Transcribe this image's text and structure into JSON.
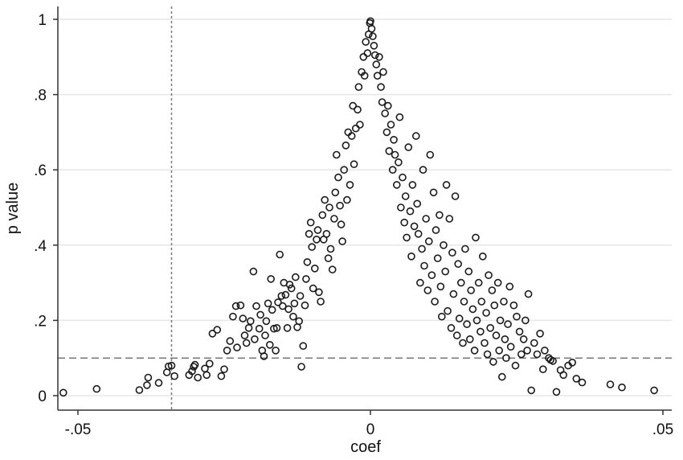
{
  "chart_data": {
    "type": "scatter",
    "xlabel": "coef",
    "ylabel": "p value",
    "xlim": [
      -0.052,
      0.052
    ],
    "ylim": [
      0,
      1
    ],
    "xticks": [
      -0.05,
      0,
      0.05
    ],
    "xtick_labels": [
      "-.05",
      "0",
      ".05"
    ],
    "yticks": [
      0,
      0.2,
      0.4,
      0.6,
      0.8,
      1
    ],
    "ytick_labels": [
      "0",
      ".2",
      ".4",
      ".6",
      ".8",
      "1"
    ],
    "grid": "horizontal",
    "legend": "none",
    "reference_lines": [
      {
        "orientation": "vertical",
        "value": -0.034,
        "style": "dotted"
      },
      {
        "orientation": "horizontal",
        "value": 0.1,
        "style": "dashed"
      }
    ],
    "colors": {
      "marker": "#1a1a1a",
      "grid": "#e6e6e6",
      "axis": "#333333",
      "refline": "#777777"
    },
    "points": [
      [
        -0.0525,
        0.008
      ],
      [
        -0.0468,
        0.018
      ],
      [
        -0.0395,
        0.015
      ],
      [
        -0.0382,
        0.028
      ],
      [
        -0.038,
        0.048
      ],
      [
        -0.0362,
        0.034
      ],
      [
        -0.0348,
        0.062
      ],
      [
        -0.0345,
        0.078
      ],
      [
        -0.034,
        0.08
      ],
      [
        -0.0335,
        0.052
      ],
      [
        -0.031,
        0.055
      ],
      [
        -0.0295,
        0.048
      ],
      [
        -0.0305,
        0.065
      ],
      [
        -0.0302,
        0.077
      ],
      [
        -0.03,
        0.082
      ],
      [
        -0.0283,
        0.072
      ],
      [
        -0.028,
        0.055
      ],
      [
        -0.0275,
        0.085
      ],
      [
        -0.0255,
        0.052
      ],
      [
        -0.027,
        0.165
      ],
      [
        -0.0262,
        0.175
      ],
      [
        -0.025,
        0.07
      ],
      [
        -0.0245,
        0.12
      ],
      [
        -0.024,
        0.145
      ],
      [
        -0.0235,
        0.21
      ],
      [
        -0.023,
        0.238
      ],
      [
        -0.0228,
        0.128
      ],
      [
        -0.0222,
        0.24
      ],
      [
        -0.0218,
        0.205
      ],
      [
        -0.0215,
        0.16
      ],
      [
        -0.0212,
        0.14
      ],
      [
        -0.0208,
        0.18
      ],
      [
        -0.0205,
        0.198
      ],
      [
        -0.02,
        0.33
      ],
      [
        -0.0198,
        0.15
      ],
      [
        -0.0195,
        0.238
      ],
      [
        -0.019,
        0.178
      ],
      [
        -0.0188,
        0.215
      ],
      [
        -0.0185,
        0.12
      ],
      [
        -0.0182,
        0.105
      ],
      [
        -0.018,
        0.16
      ],
      [
        -0.0178,
        0.198
      ],
      [
        -0.0175,
        0.245
      ],
      [
        -0.0172,
        0.135
      ],
      [
        -0.017,
        0.31
      ],
      [
        -0.0168,
        0.228
      ],
      [
        -0.0165,
        0.178
      ],
      [
        -0.0162,
        0.12
      ],
      [
        -0.016,
        0.18
      ],
      [
        -0.0158,
        0.248
      ],
      [
        -0.0155,
        0.375
      ],
      [
        -0.0152,
        0.265
      ],
      [
        -0.015,
        0.238
      ],
      [
        -0.0148,
        0.3
      ],
      [
        -0.0145,
        0.268
      ],
      [
        -0.0142,
        0.18
      ],
      [
        -0.014,
        0.23
      ],
      [
        -0.0138,
        0.295
      ],
      [
        -0.0135,
        0.285
      ],
      [
        -0.0132,
        0.21
      ],
      [
        -0.013,
        0.245
      ],
      [
        -0.0128,
        0.315
      ],
      [
        -0.0125,
        0.182
      ],
      [
        -0.0122,
        0.198
      ],
      [
        -0.012,
        0.265
      ],
      [
        -0.0118,
        0.077
      ],
      [
        -0.0115,
        0.132
      ],
      [
        -0.0112,
        0.24
      ],
      [
        -0.011,
        0.31
      ],
      [
        -0.0108,
        0.355
      ],
      [
        -0.0105,
        0.43
      ],
      [
        -0.0102,
        0.46
      ],
      [
        -0.01,
        0.395
      ],
      [
        -0.0098,
        0.285
      ],
      [
        -0.0095,
        0.338
      ],
      [
        -0.0092,
        0.415
      ],
      [
        -0.009,
        0.44
      ],
      [
        -0.0088,
        0.275
      ],
      [
        -0.0085,
        0.25
      ],
      [
        -0.0082,
        0.48
      ],
      [
        -0.008,
        0.415
      ],
      [
        -0.0078,
        0.52
      ],
      [
        -0.0075,
        0.43
      ],
      [
        -0.0072,
        0.365
      ],
      [
        -0.007,
        0.5
      ],
      [
        -0.0068,
        0.39
      ],
      [
        -0.0065,
        0.335
      ],
      [
        -0.0062,
        0.47
      ],
      [
        -0.006,
        0.54
      ],
      [
        -0.0058,
        0.64
      ],
      [
        -0.0055,
        0.58
      ],
      [
        -0.0052,
        0.505
      ],
      [
        -0.005,
        0.455
      ],
      [
        -0.0048,
        0.41
      ],
      [
        -0.0045,
        0.6
      ],
      [
        -0.0042,
        0.665
      ],
      [
        -0.004,
        0.52
      ],
      [
        -0.0038,
        0.7
      ],
      [
        -0.0035,
        0.56
      ],
      [
        -0.0032,
        0.69
      ],
      [
        -0.003,
        0.77
      ],
      [
        -0.0028,
        0.615
      ],
      [
        -0.0025,
        0.71
      ],
      [
        -0.0022,
        0.76
      ],
      [
        -0.002,
        0.82
      ],
      [
        -0.0018,
        0.72
      ],
      [
        -0.0015,
        0.86
      ],
      [
        -0.0012,
        0.9
      ],
      [
        -0.001,
        0.85
      ],
      [
        -0.0008,
        0.94
      ],
      [
        -0.0005,
        0.91
      ],
      [
        -0.0003,
        0.96
      ],
      [
        -0.0001,
        0.99
      ],
      [
        0.0,
        0.995
      ],
      [
        0.0002,
        0.975
      ],
      [
        0.0004,
        0.955
      ],
      [
        0.0006,
        0.93
      ],
      [
        0.0008,
        0.905
      ],
      [
        0.001,
        0.88
      ],
      [
        0.0012,
        0.85
      ],
      [
        0.0015,
        0.9
      ],
      [
        0.0018,
        0.82
      ],
      [
        0.002,
        0.78
      ],
      [
        0.0022,
        0.86
      ],
      [
        0.0025,
        0.75
      ],
      [
        0.0028,
        0.7
      ],
      [
        0.003,
        0.77
      ],
      [
        0.0032,
        0.65
      ],
      [
        0.0035,
        0.72
      ],
      [
        0.0038,
        0.6
      ],
      [
        0.004,
        0.68
      ],
      [
        0.0042,
        0.64
      ],
      [
        0.0045,
        0.56
      ],
      [
        0.0048,
        0.62
      ],
      [
        0.005,
        0.74
      ],
      [
        0.0052,
        0.5
      ],
      [
        0.0055,
        0.58
      ],
      [
        0.0058,
        0.46
      ],
      [
        0.006,
        0.53
      ],
      [
        0.0062,
        0.42
      ],
      [
        0.0065,
        0.66
      ],
      [
        0.0068,
        0.49
      ],
      [
        0.007,
        0.37
      ],
      [
        0.0072,
        0.56
      ],
      [
        0.0075,
        0.45
      ],
      [
        0.0078,
        0.69
      ],
      [
        0.008,
        0.51
      ],
      [
        0.0082,
        0.43
      ],
      [
        0.0085,
        0.3
      ],
      [
        0.0088,
        0.39
      ],
      [
        0.009,
        0.6
      ],
      [
        0.0092,
        0.345
      ],
      [
        0.0095,
        0.47
      ],
      [
        0.0098,
        0.28
      ],
      [
        0.01,
        0.41
      ],
      [
        0.0102,
        0.64
      ],
      [
        0.0105,
        0.32
      ],
      [
        0.0108,
        0.54
      ],
      [
        0.011,
        0.25
      ],
      [
        0.0112,
        0.44
      ],
      [
        0.0115,
        0.365
      ],
      [
        0.0118,
        0.48
      ],
      [
        0.012,
        0.29
      ],
      [
        0.0122,
        0.21
      ],
      [
        0.0125,
        0.4
      ],
      [
        0.0128,
        0.33
      ],
      [
        0.013,
        0.56
      ],
      [
        0.0132,
        0.225
      ],
      [
        0.0135,
        0.47
      ],
      [
        0.0138,
        0.18
      ],
      [
        0.014,
        0.38
      ],
      [
        0.0142,
        0.27
      ],
      [
        0.0145,
        0.53
      ],
      [
        0.0148,
        0.16
      ],
      [
        0.015,
        0.35
      ],
      [
        0.0152,
        0.205
      ],
      [
        0.0155,
        0.3
      ],
      [
        0.0158,
        0.14
      ],
      [
        0.016,
        0.25
      ],
      [
        0.0162,
        0.39
      ],
      [
        0.0165,
        0.19
      ],
      [
        0.0168,
        0.33
      ],
      [
        0.017,
        0.15
      ],
      [
        0.0172,
        0.28
      ],
      [
        0.0175,
        0.23
      ],
      [
        0.0178,
        0.12
      ],
      [
        0.018,
        0.42
      ],
      [
        0.0182,
        0.2
      ],
      [
        0.0185,
        0.3
      ],
      [
        0.0188,
        0.17
      ],
      [
        0.019,
        0.25
      ],
      [
        0.0192,
        0.37
      ],
      [
        0.0195,
        0.14
      ],
      [
        0.0198,
        0.22
      ],
      [
        0.02,
        0.11
      ],
      [
        0.0202,
        0.32
      ],
      [
        0.0205,
        0.18
      ],
      [
        0.0208,
        0.28
      ],
      [
        0.021,
        0.09
      ],
      [
        0.0212,
        0.24
      ],
      [
        0.0215,
        0.16
      ],
      [
        0.0218,
        0.3
      ],
      [
        0.022,
        0.12
      ],
      [
        0.0222,
        0.2
      ],
      [
        0.0225,
        0.05
      ],
      [
        0.0228,
        0.25
      ],
      [
        0.023,
        0.15
      ],
      [
        0.0232,
        0.1
      ],
      [
        0.0235,
        0.19
      ],
      [
        0.0238,
        0.29
      ],
      [
        0.024,
        0.13
      ],
      [
        0.0245,
        0.24
      ],
      [
        0.0248,
        0.08
      ],
      [
        0.025,
        0.21
      ],
      [
        0.0255,
        0.17
      ],
      [
        0.0258,
        0.11
      ],
      [
        0.0262,
        0.15
      ],
      [
        0.0265,
        0.2
      ],
      [
        0.0268,
        0.12
      ],
      [
        0.027,
        0.27
      ],
      [
        0.0275,
        0.014
      ],
      [
        0.028,
        0.14
      ],
      [
        0.0285,
        0.11
      ],
      [
        0.029,
        0.165
      ],
      [
        0.0295,
        0.07
      ],
      [
        0.0298,
        0.12
      ],
      [
        0.0305,
        0.1
      ],
      [
        0.0308,
        0.095
      ],
      [
        0.0312,
        0.092
      ],
      [
        0.0318,
        0.01
      ],
      [
        0.0325,
        0.068
      ],
      [
        0.033,
        0.055
      ],
      [
        0.0338,
        0.08
      ],
      [
        0.0345,
        0.088
      ],
      [
        0.0352,
        0.045
      ],
      [
        0.0362,
        0.035
      ],
      [
        0.041,
        0.03
      ],
      [
        0.043,
        0.022
      ],
      [
        0.0485,
        0.014
      ]
    ]
  }
}
